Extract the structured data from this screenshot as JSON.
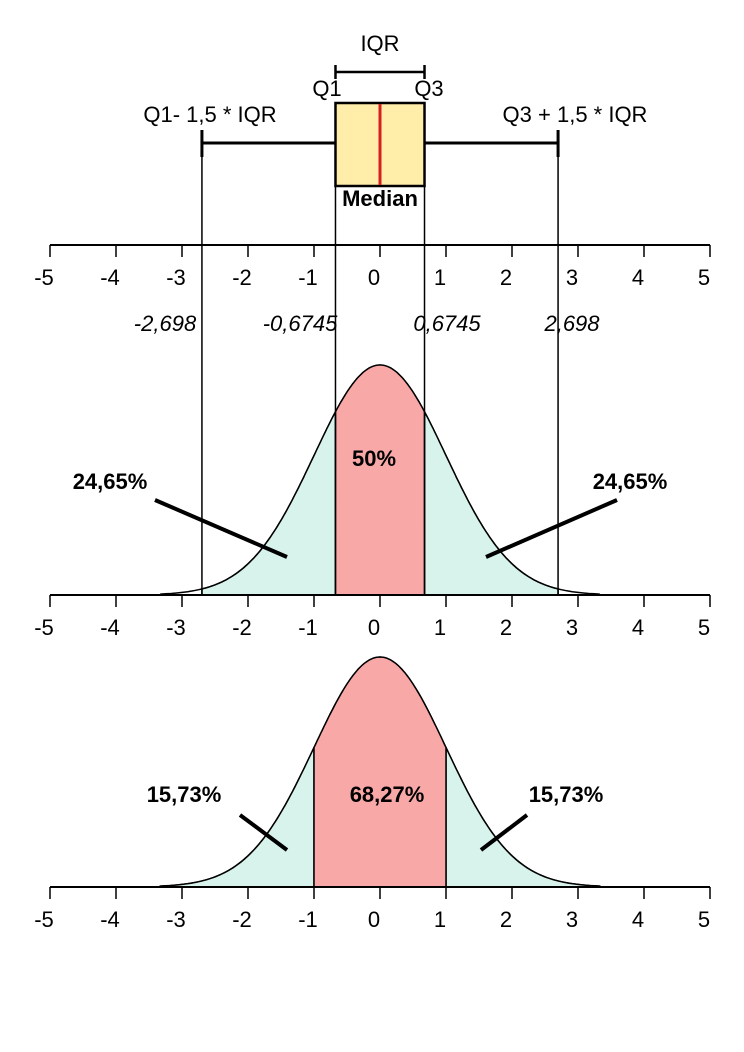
{
  "boxplot": {
    "iqr_label": "IQR",
    "q1_label": "Q1",
    "q3_label": "Q3",
    "lower_fence_label": "Q1- 1,5 * IQR",
    "upper_fence_label": "Q3 + 1,5 * IQR",
    "median_label": "Median",
    "median": 0
  },
  "boundaries": [
    {
      "value": -2.698,
      "label": "-2,698"
    },
    {
      "value": -0.6745,
      "label": "-0,6745"
    },
    {
      "value": 0.6745,
      "label": "0,6745"
    },
    {
      "value": 2.698,
      "label": "2,698"
    }
  ],
  "xlim": [
    -5,
    5
  ],
  "xticks": [
    -5,
    -4,
    -3,
    -2,
    -1,
    0,
    1,
    2,
    3,
    4,
    5
  ],
  "distributions": [
    {
      "inner": [
        -0.6745,
        0.6745
      ],
      "tails_to_fences": true,
      "center": {
        "value": 50,
        "label": "50%"
      },
      "tails": [
        {
          "value": 24.65,
          "label": "24,65%"
        },
        {
          "value": 24.65,
          "label": "24,65%"
        }
      ]
    },
    {
      "inner": [
        -1,
        1
      ],
      "tails_to_fences": false,
      "center": {
        "value": 68.27,
        "label": "68,27%"
      },
      "tails": [
        {
          "value": 15.73,
          "label": "15,73%"
        },
        {
          "value": 15.73,
          "label": "15,73%"
        }
      ]
    }
  ]
}
